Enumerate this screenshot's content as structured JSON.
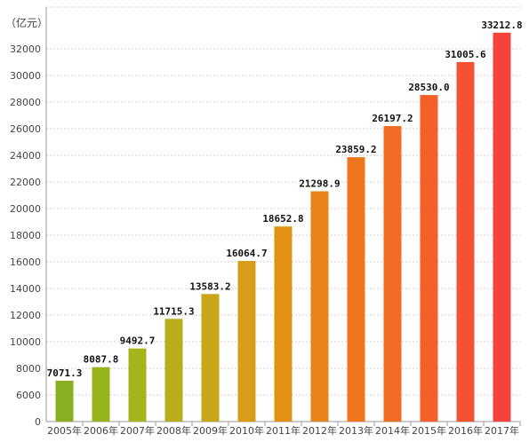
{
  "chart_data": {
    "type": "bar",
    "unit_label": "（亿元）",
    "categories": [
      "2005年",
      "2006年",
      "2007年",
      "2008年",
      "2009年",
      "2010年",
      "2011年",
      "2012年",
      "2013年",
      "2014年",
      "2015年",
      "2016年",
      "2017年"
    ],
    "values": [
      7071.3,
      8087.8,
      9492.7,
      11715.3,
      13583.2,
      16064.7,
      18652.8,
      21298.9,
      23859.2,
      26197.2,
      28530.0,
      31005.6,
      33212.8
    ],
    "value_labels": [
      "7071.3",
      "8087.8",
      "9492.7",
      "11715.3",
      "13583.2",
      "16064.7",
      "18652.8",
      "21298.9",
      "23859.2",
      "26197.2",
      "28530.0",
      "31005.6",
      "33212.8"
    ],
    "y_ticks": [
      0,
      6000,
      8000,
      10000,
      12000,
      14000,
      16000,
      18000,
      20000,
      22000,
      24000,
      26000,
      28000,
      30000,
      32000
    ],
    "y_axis_break": {
      "below": 0,
      "above": 5000
    },
    "ylim": [
      5000,
      34000
    ],
    "grid": true,
    "bar_colors": [
      "#86b01f",
      "#94b31c",
      "#a5b41b",
      "#b7ae19",
      "#c8a617",
      "#d89c16",
      "#e39114",
      "#ea8318",
      "#ef761d",
      "#f26b22",
      "#f45f2a",
      "#f45233",
      "#f4433b"
    ]
  }
}
